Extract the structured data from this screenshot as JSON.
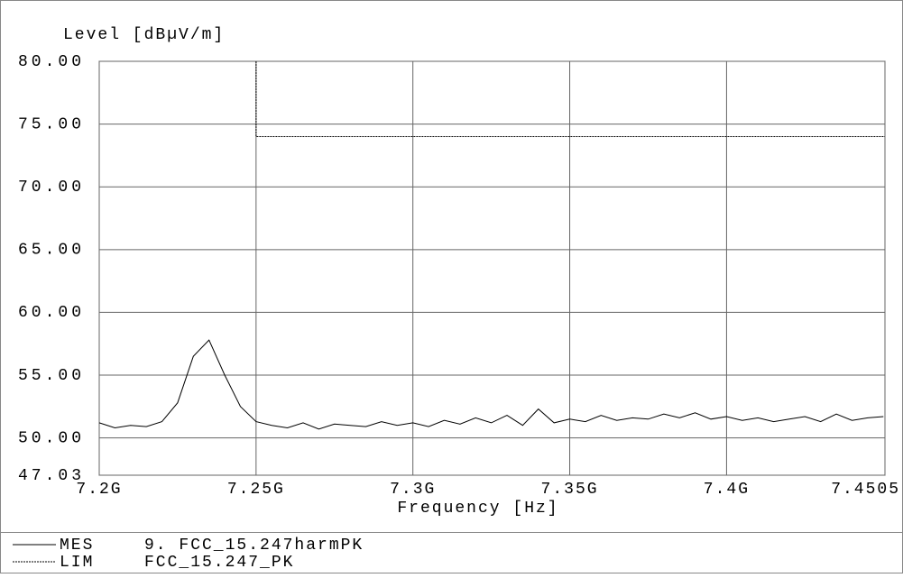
{
  "chart_data": {
    "type": "line",
    "ylabel": "Level  [dBµV/m]",
    "xlabel": "Frequency  [Hz]",
    "xlim": [
      7.2,
      7.4505
    ],
    "ylim": [
      47.03,
      80
    ],
    "xticks": [
      {
        "value": 7.2,
        "label": "7.2G"
      },
      {
        "value": 7.25,
        "label": "7.25G"
      },
      {
        "value": 7.3,
        "label": "7.3G"
      },
      {
        "value": 7.35,
        "label": "7.35G"
      },
      {
        "value": 7.4,
        "label": "7.4G"
      },
      7.4505
    ],
    "yticks": [
      47.03,
      {
        "value": 50,
        "label": "50.00"
      },
      {
        "value": 55,
        "label": "55.00"
      },
      {
        "value": 60,
        "label": "60.00"
      },
      {
        "value": 65,
        "label": "65.00"
      },
      {
        "value": 70,
        "label": "70.00"
      },
      {
        "value": 75,
        "label": "75.00"
      },
      {
        "value": 80,
        "label": "80.00"
      }
    ],
    "grid": true,
    "series": [
      {
        "name": "MES",
        "description": "9.  FCC_15.247harmPK",
        "color": "#000000",
        "dashed": false,
        "x": [
          7.2,
          7.205,
          7.21,
          7.215,
          7.22,
          7.225,
          7.23,
          7.235,
          7.24,
          7.245,
          7.25,
          7.255,
          7.26,
          7.265,
          7.27,
          7.275,
          7.28,
          7.285,
          7.29,
          7.295,
          7.3,
          7.305,
          7.31,
          7.315,
          7.32,
          7.325,
          7.33,
          7.335,
          7.34,
          7.345,
          7.35,
          7.355,
          7.36,
          7.365,
          7.37,
          7.375,
          7.38,
          7.385,
          7.39,
          7.395,
          7.4,
          7.405,
          7.41,
          7.415,
          7.42,
          7.425,
          7.43,
          7.435,
          7.44,
          7.445,
          7.45
        ],
        "values": [
          51.2,
          50.8,
          51.0,
          50.9,
          51.3,
          52.8,
          56.5,
          57.8,
          55.0,
          52.5,
          51.3,
          51.0,
          50.8,
          51.2,
          50.7,
          51.1,
          51.0,
          50.9,
          51.3,
          51.0,
          51.2,
          50.9,
          51.4,
          51.1,
          51.6,
          51.2,
          51.8,
          51.0,
          52.3,
          51.2,
          51.5,
          51.3,
          51.8,
          51.4,
          51.6,
          51.5,
          51.9,
          51.6,
          52.0,
          51.5,
          51.7,
          51.4,
          51.6,
          51.3,
          51.5,
          51.7,
          51.3,
          51.9,
          51.4,
          51.6,
          51.7
        ]
      },
      {
        "name": "LIM",
        "description": "FCC_15.247_PK",
        "color": "#000000",
        "dashed": true,
        "x": [
          7.25,
          7.25,
          7.4505
        ],
        "values": [
          80,
          74,
          74
        ]
      }
    ]
  }
}
